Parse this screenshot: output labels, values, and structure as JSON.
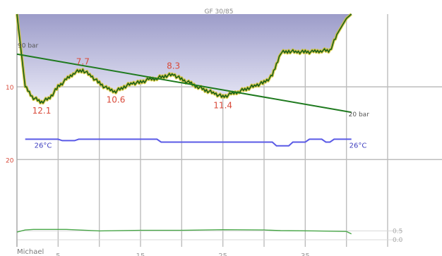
{
  "chart_data": {
    "type": "line",
    "title": "GF 30/85",
    "diver": "Michael",
    "x_ticks": [
      "5",
      "15",
      "25",
      "35"
    ],
    "y_ticks": [
      "10",
      "20"
    ],
    "xlim": [
      0,
      45
    ],
    "ylim": [
      0,
      32
    ],
    "depth_profile": {
      "name": "depth",
      "color": "#1a5e1a",
      "x": [
        0,
        1.0,
        2.0,
        3.0,
        4.0,
        5.0,
        6.0,
        7.0,
        8.0,
        9.0,
        10.0,
        11.0,
        12.0,
        13.0,
        14.0,
        15.0,
        16.0,
        17.0,
        18.0,
        19.0,
        20.0,
        21.0,
        22.0,
        23.0,
        24.0,
        25.0,
        26.0,
        27.0,
        28.0,
        29.0,
        30.0,
        31.0,
        32.0,
        33.0,
        34.0,
        35.0,
        36.0,
        37.0,
        38.0,
        39.0,
        40.0,
        40.6
      ],
      "y": [
        0,
        10.0,
        11.5,
        12.1,
        11.5,
        10.0,
        9.0,
        8.0,
        7.7,
        8.5,
        9.5,
        10.3,
        10.6,
        10.0,
        9.5,
        9.4,
        9.0,
        8.8,
        8.5,
        8.3,
        9.0,
        9.5,
        10.0,
        10.5,
        10.9,
        11.4,
        11.0,
        10.6,
        10.2,
        9.8,
        9.4,
        8.5,
        5.3,
        5.1,
        5.2,
        5.2,
        5.2,
        5.0,
        5.0,
        2.5,
        0.6,
        0
      ]
    },
    "depth_labels": [
      {
        "text": "12.1",
        "x": 3.0,
        "y": 12.1
      },
      {
        "text": "7.7",
        "x": 8.0,
        "y": 7.7
      },
      {
        "text": "10.6",
        "x": 12.0,
        "y": 10.6
      },
      {
        "text": "8.3",
        "x": 19.0,
        "y": 8.3
      },
      {
        "text": "11.4",
        "x": 25.0,
        "y": 11.4
      }
    ],
    "pressure_line": {
      "name": "tank pressure",
      "color": "#1f7a1f",
      "start_label": "90 bar",
      "end_label": "20 bar",
      "x": [
        0,
        40.6
      ],
      "y": [
        5.5,
        13.5
      ]
    },
    "temperature": {
      "name": "temperature",
      "color": "#5a5ae6",
      "start_label": "26°C",
      "end_label": "26°C",
      "x": [
        1,
        5,
        5.5,
        7,
        7.5,
        17,
        17.5,
        31,
        31.5,
        33,
        33.5,
        35,
        35.5,
        37,
        37.5,
        38,
        38.5,
        40.6
      ],
      "y": [
        17.2,
        17.2,
        17.4,
        17.4,
        17.2,
        17.2,
        17.6,
        17.6,
        18.1,
        18.1,
        17.6,
        17.6,
        17.2,
        17.2,
        17.6,
        17.6,
        17.2,
        17.2
      ]
    },
    "ppo2": {
      "name": "pO2",
      "color": "#4aa84a",
      "ticks": [
        "0.5",
        "0.0"
      ],
      "x": [
        0,
        1,
        2,
        6,
        10,
        15,
        20,
        25,
        30,
        32,
        36,
        38,
        40,
        40.6
      ],
      "y": [
        0.26,
        0.33,
        0.35,
        0.35,
        0.3,
        0.32,
        0.32,
        0.34,
        0.33,
        0.31,
        0.3,
        0.29,
        0.28,
        0.2
      ]
    },
    "colors": {
      "area_top": "#9c9cc9",
      "area_bottom": "#e9e9f7",
      "ceiling": "#d4c32a",
      "grid": "#bdbdbd",
      "depth_text": "#d94a3a",
      "axis_text": "#d94a3a"
    }
  }
}
